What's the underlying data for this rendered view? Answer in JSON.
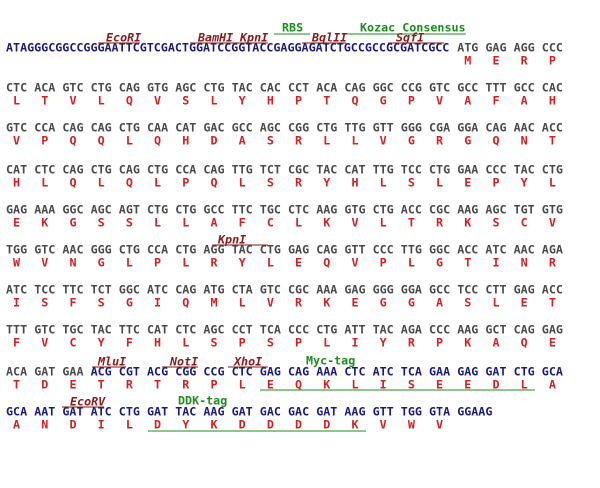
{
  "rows": [
    {
      "prefix": "ATAGGGCGGCCGGGAATTCGTCGACTGGATCCGGTACCGAGGAGATCTGCCGCCGCGATCGCC",
      "prefix_color": "#1a1a80",
      "segments": [
        {
          "codons": [
            "ATG",
            "GAG",
            "AGG",
            "CCC"
          ],
          "color": "#4a4a4a"
        }
      ],
      "amino_acids": [
        "M",
        "E",
        "R",
        "P"
      ]
    },
    {
      "segments": [
        {
          "codons": [
            "CTC",
            "ACA",
            "GTC",
            "CTG",
            "CAG",
            "GTG",
            "AGC",
            "CTG",
            "TAC",
            "CAC",
            "CCT",
            "ACA",
            "CAG",
            "GGC",
            "CCG",
            "GTC",
            "GCC",
            "TTT",
            "GCC",
            "CAC"
          ],
          "color": "#4a4a4a"
        }
      ],
      "amino_acids": [
        "L",
        "T",
        "V",
        "L",
        "Q",
        "V",
        "S",
        "L",
        "Y",
        "H",
        "P",
        "T",
        "Q",
        "G",
        "P",
        "V",
        "A",
        "F",
        "A",
        "H"
      ]
    },
    {
      "segments": [
        {
          "codons": [
            "GTC",
            "CCA",
            "CAG",
            "CAG",
            "CTG",
            "CAA",
            "CAT",
            "GAC",
            "GCC",
            "AGC",
            "CGG",
            "CTG",
            "TTG",
            "GTT",
            "GGG",
            "CGA",
            "GGA",
            "CAG",
            "AAC",
            "ACC"
          ],
          "color": "#4a4a4a"
        }
      ],
      "amino_acids": [
        "V",
        "P",
        "Q",
        "Q",
        "L",
        "Q",
        "H",
        "D",
        "A",
        "S",
        "R",
        "L",
        "L",
        "V",
        "G",
        "R",
        "G",
        "Q",
        "N",
        "T"
      ]
    },
    {
      "segments": [
        {
          "codons": [
            "CAT",
            "CTC",
            "CAG",
            "CTG",
            "CAG",
            "CTG",
            "CCA",
            "CAG",
            "TTG",
            "TCT",
            "CGC",
            "TAC",
            "CAT",
            "TTG",
            "TCC",
            "CTG",
            "GAA",
            "CCC",
            "TAC",
            "CTG"
          ],
          "color": "#4a4a4a"
        }
      ],
      "amino_acids": [
        "H",
        "L",
        "Q",
        "L",
        "Q",
        "L",
        "P",
        "Q",
        "L",
        "S",
        "R",
        "Y",
        "H",
        "L",
        "S",
        "L",
        "E",
        "P",
        "Y",
        "L"
      ]
    },
    {
      "segments": [
        {
          "codons": [
            "GAG",
            "AAA",
            "GGC",
            "AGC",
            "AGT",
            "CTG",
            "CTG",
            "GCC",
            "TTC",
            "TGC",
            "CTC",
            "AAG",
            "GTG",
            "CTG",
            "ACC",
            "CGC",
            "AAG",
            "AGC",
            "TGT",
            "GTG"
          ],
          "color": "#4a4a4a"
        }
      ],
      "amino_acids": [
        "E",
        "K",
        "G",
        "S",
        "S",
        "L",
        "L",
        "A",
        "F",
        "C",
        "L",
        "K",
        "V",
        "L",
        "T",
        "R",
        "K",
        "S",
        "C",
        "V"
      ]
    },
    {
      "segments": [
        {
          "codons": [
            "TGG",
            "GTC",
            "AAC",
            "GGG",
            "CTG",
            "CCA",
            "CTG",
            "AGG",
            "TAC",
            "CTG",
            "GAG",
            "CAG",
            "GTT",
            "CCC",
            "TTG",
            "GGC",
            "ACC",
            "ATC",
            "AAC",
            "AGA"
          ],
          "color": "#4a4a4a"
        }
      ],
      "amino_acids": [
        "W",
        "V",
        "N",
        "G",
        "L",
        "P",
        "L",
        "R",
        "Y",
        "L",
        "E",
        "Q",
        "V",
        "P",
        "L",
        "G",
        "T",
        "I",
        "N",
        "R"
      ]
    },
    {
      "segments": [
        {
          "codons": [
            "ATC",
            "TCC",
            "TTC",
            "TCT",
            "GGC",
            "ATC",
            "CAG",
            "ATG",
            "CTA",
            "GTC",
            "CGC",
            "AAA",
            "GAG",
            "GGG",
            "GGA",
            "GCC",
            "TCC",
            "CTT",
            "GAG",
            "ACC"
          ],
          "color": "#4a4a4a"
        }
      ],
      "amino_acids": [
        "I",
        "S",
        "F",
        "S",
        "G",
        "I",
        "Q",
        "M",
        "L",
        "V",
        "R",
        "K",
        "E",
        "G",
        "G",
        "A",
        "S",
        "L",
        "E",
        "T"
      ]
    },
    {
      "segments": [
        {
          "codons": [
            "TTT",
            "GTC",
            "TGC",
            "TAC",
            "TTC",
            "CAT",
            "CTC",
            "AGC",
            "CCT",
            "TCA",
            "CCC",
            "CTG",
            "ATT",
            "TAC",
            "AGA",
            "CCC",
            "AAG",
            "GCT",
            "CAG",
            "GAG"
          ],
          "color": "#4a4a4a"
        }
      ],
      "amino_acids": [
        "F",
        "V",
        "C",
        "Y",
        "F",
        "H",
        "L",
        "S",
        "P",
        "S",
        "P",
        "L",
        "I",
        "Y",
        "R",
        "P",
        "K",
        "A",
        "Q",
        "E"
      ]
    },
    {
      "segments": [
        {
          "codons": [
            "ACA",
            "GAT",
            "GAA"
          ],
          "color": "#4a4a4a"
        },
        {
          "codons": [
            "ACG",
            "CGT",
            "ACG",
            "CGG",
            "CCG",
            "CTC",
            "GAG",
            "CAG",
            "AAA",
            "CTC",
            "ATC",
            "TCA",
            "GAA",
            "GAG",
            "GAT",
            "CTG",
            "GCA"
          ],
          "color": "#1a1a80"
        }
      ],
      "amino_acids": [
        "T",
        "D",
        "E",
        "T",
        "R",
        "T",
        "R",
        "P",
        "L",
        "E",
        "Q",
        "K",
        "L",
        "I",
        "S",
        "E",
        "E",
        "D",
        "L",
        "A"
      ]
    },
    {
      "segments": [
        {
          "codons": [
            "GCA",
            "AAT",
            "GAT",
            "ATC",
            "CTG",
            "GAT",
            "TAC",
            "AAG",
            "GAT",
            "GAC",
            "GAC",
            "GAT",
            "AAG",
            "GTT",
            "TGG",
            "GTA",
            "GGAAG"
          ],
          "color": "#1a1a80"
        }
      ],
      "amino_acids": [
        "A",
        "N",
        "D",
        "I",
        "L",
        "D",
        "Y",
        "K",
        "D",
        "D",
        "D",
        "D",
        "K",
        "V",
        "W",
        "V"
      ]
    }
  ],
  "annotations": [
    {
      "label": "RBS",
      "color": "#1e8c1e"
    },
    {
      "label": "Kozac Consensus",
      "color": "#1e8c1e"
    },
    {
      "label": "EcoRI",
      "color": "#8b1a1a"
    },
    {
      "label": "BamHI",
      "color": "#8b1a1a"
    },
    {
      "label": "KpnI",
      "color": "#8b1a1a"
    },
    {
      "label": "BglII",
      "color": "#8b1a1a"
    },
    {
      "label": "SgfI",
      "color": "#8b1a1a"
    },
    {
      "label": "KpnI",
      "color": "#8b1a1a"
    },
    {
      "label": "MluI",
      "color": "#8b1a1a"
    },
    {
      "label": "NotI",
      "color": "#8b1a1a"
    },
    {
      "label": "XhoI",
      "color": "#8b1a1a"
    },
    {
      "label": "Myc-tag",
      "color": "#1e8c1e"
    },
    {
      "label": "EcoRV",
      "color": "#8b1a1a"
    },
    {
      "label": "DDK-tag",
      "color": "#1e8c1e"
    }
  ]
}
